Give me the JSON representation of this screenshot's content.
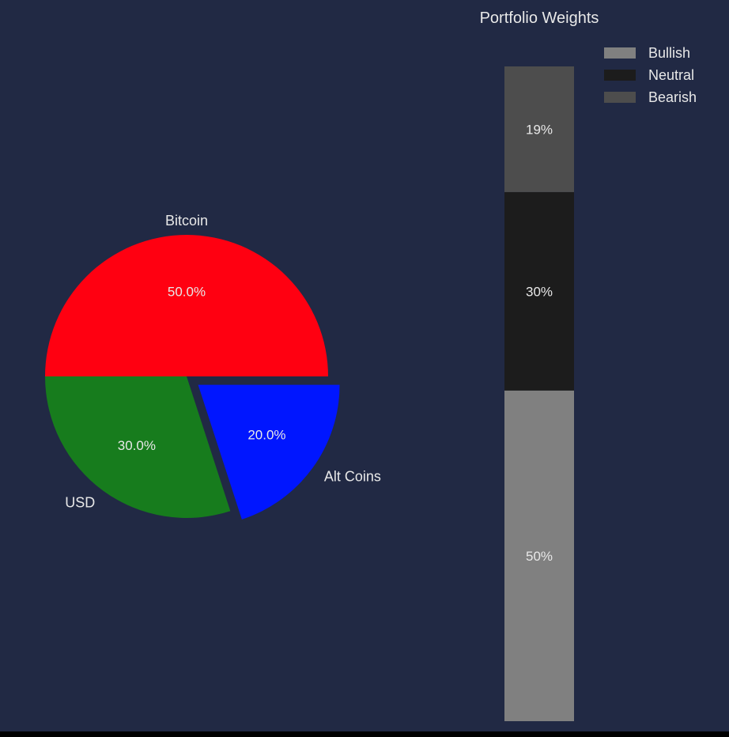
{
  "background": "#212944",
  "text_color": "#e8e8e8",
  "chart_data": [
    {
      "type": "pie",
      "title": "",
      "slices": [
        {
          "label": "Bitcoin",
          "value": 50,
          "pct_label": "50.0%",
          "color": "#ff0011",
          "exploded": false
        },
        {
          "label": "USD",
          "value": 30,
          "pct_label": "30.0%",
          "color": "#177c1d",
          "exploded": false
        },
        {
          "label": "Alt Coins",
          "value": 20,
          "pct_label": "20.0%",
          "color": "#0016ff",
          "exploded": true
        }
      ]
    },
    {
      "type": "bar",
      "stacked": true,
      "title": "Portfolio Weights",
      "legend_position": "top-right",
      "series": [
        {
          "name": "Bullish",
          "value": 50,
          "label": "50%",
          "color": "#808080"
        },
        {
          "name": "Neutral",
          "value": 30,
          "label": "30%",
          "color": "#1c1c1c"
        },
        {
          "name": "Bearish",
          "value": 19,
          "label": "19%",
          "color": "#4d4d4d"
        }
      ]
    }
  ]
}
